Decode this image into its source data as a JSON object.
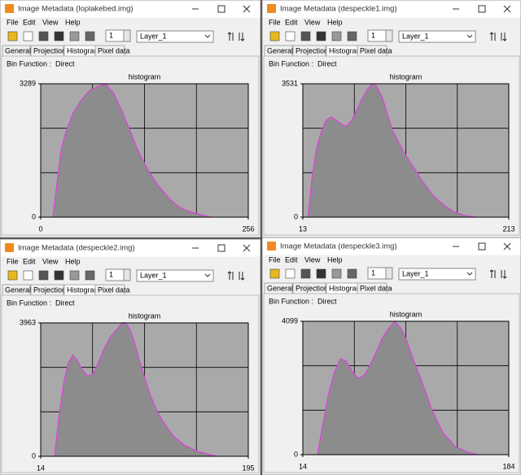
{
  "windows": [
    {
      "title": "Image Metadata (loplakebed.img)",
      "menu": [
        "File",
        "Edit",
        "View",
        "Help"
      ],
      "spinner": 1,
      "layer": "Layer_1",
      "tabs": [
        "General",
        "Projection",
        "Histogram",
        "Pixel data"
      ],
      "bin_label": "Bin Function :",
      "bin_value": "Direct",
      "chart_data": {
        "type": "area",
        "title": "histogram",
        "color": "#e040e0",
        "fill": "#8c8c8c",
        "xlim": [
          0,
          256
        ],
        "xticks": [
          0,
          256
        ],
        "ylim": [
          0,
          3289
        ],
        "yticks": [
          0,
          3289
        ],
        "x": [
          15,
          20,
          25,
          30,
          40,
          50,
          60,
          70,
          80,
          90,
          100,
          110,
          120,
          130,
          140,
          150,
          160,
          170,
          180,
          190,
          200,
          210
        ],
        "values": [
          0,
          820,
          1640,
          2040,
          2570,
          2890,
          3120,
          3220,
          3289,
          3060,
          2630,
          2140,
          1640,
          1250,
          920,
          660,
          430,
          260,
          160,
          100,
          50,
          0
        ]
      }
    },
    {
      "title": "Image Metadata (despeckle1.img)",
      "menu": [
        "File",
        "Edit",
        "View",
        "Help"
      ],
      "spinner": 1,
      "layer": "Layer_1",
      "tabs": [
        "General",
        "Projection",
        "Histogram",
        "Pixel data"
      ],
      "bin_label": "Bin Function :",
      "bin_value": "Direct",
      "chart_data": {
        "type": "area",
        "title": "histogram",
        "color": "#e040e0",
        "fill": "#8c8c8c",
        "xlim": [
          13,
          213
        ],
        "xticks": [
          13,
          213
        ],
        "ylim": [
          0,
          3531
        ],
        "yticks": [
          0,
          3531
        ],
        "x": [
          18,
          22,
          26,
          30,
          35,
          40,
          45,
          50,
          55,
          60,
          65,
          70,
          75,
          80,
          85,
          90,
          95,
          100,
          110,
          120,
          130,
          140,
          150,
          160,
          170,
          180
        ],
        "values": [
          0,
          1060,
          1770,
          2190,
          2540,
          2650,
          2580,
          2470,
          2400,
          2540,
          2820,
          3110,
          3350,
          3531,
          3460,
          3180,
          2750,
          2300,
          1770,
          1340,
          920,
          560,
          320,
          140,
          50,
          0
        ]
      }
    },
    {
      "title": "Image Metadata (despeckle2.img)",
      "menu": [
        "File",
        "Edit",
        "View",
        "Help"
      ],
      "spinner": 1,
      "layer": "Layer_1",
      "tabs": [
        "General",
        "Projection",
        "Histogram",
        "Pixel data"
      ],
      "bin_label": "Bin Function :",
      "bin_value": "Direct",
      "chart_data": {
        "type": "area",
        "title": "histogram",
        "color": "#e040e0",
        "fill": "#8c8c8c",
        "xlim": [
          14,
          195
        ],
        "xticks": [
          14,
          195
        ],
        "ylim": [
          0,
          3963
        ],
        "yticks": [
          0,
          3963
        ],
        "x": [
          26,
          30,
          34,
          38,
          42,
          46,
          50,
          55,
          60,
          65,
          70,
          75,
          80,
          85,
          88,
          92,
          96,
          100,
          105,
          110,
          115,
          120,
          130,
          140,
          150,
          160,
          168
        ],
        "values": [
          0,
          1190,
          2180,
          2770,
          3010,
          2850,
          2580,
          2380,
          2460,
          2850,
          3250,
          3570,
          3760,
          3963,
          3963,
          3760,
          3370,
          2850,
          2300,
          1780,
          1390,
          1070,
          590,
          320,
          160,
          60,
          0
        ]
      }
    },
    {
      "title": "Image Metadata (despeckle3.img)",
      "menu": [
        "File",
        "Edit",
        "View",
        "Help"
      ],
      "spinner": 1,
      "layer": "Layer_1",
      "tabs": [
        "General",
        "Projection",
        "Histogram",
        "Pixel data"
      ],
      "bin_label": "Bin Function :",
      "bin_value": "Direct",
      "chart_data": {
        "type": "area",
        "title": "histogram",
        "color": "#e040e0",
        "fill": "#8c8c8c",
        "xlim": [
          14,
          184
        ],
        "xticks": [
          14,
          184
        ],
        "ylim": [
          0,
          4099
        ],
        "yticks": [
          0,
          4099
        ],
        "x": [
          26,
          30,
          35,
          40,
          45,
          50,
          55,
          60,
          65,
          70,
          75,
          80,
          85,
          90,
          95,
          100,
          105,
          110,
          115,
          120,
          125,
          130,
          140,
          150,
          158
        ],
        "values": [
          0,
          820,
          1840,
          2540,
          2950,
          2870,
          2540,
          2340,
          2460,
          2790,
          3200,
          3610,
          3890,
          4099,
          3890,
          3480,
          2950,
          2460,
          1970,
          1430,
          1020,
          660,
          250,
          80,
          0
        ]
      }
    }
  ]
}
